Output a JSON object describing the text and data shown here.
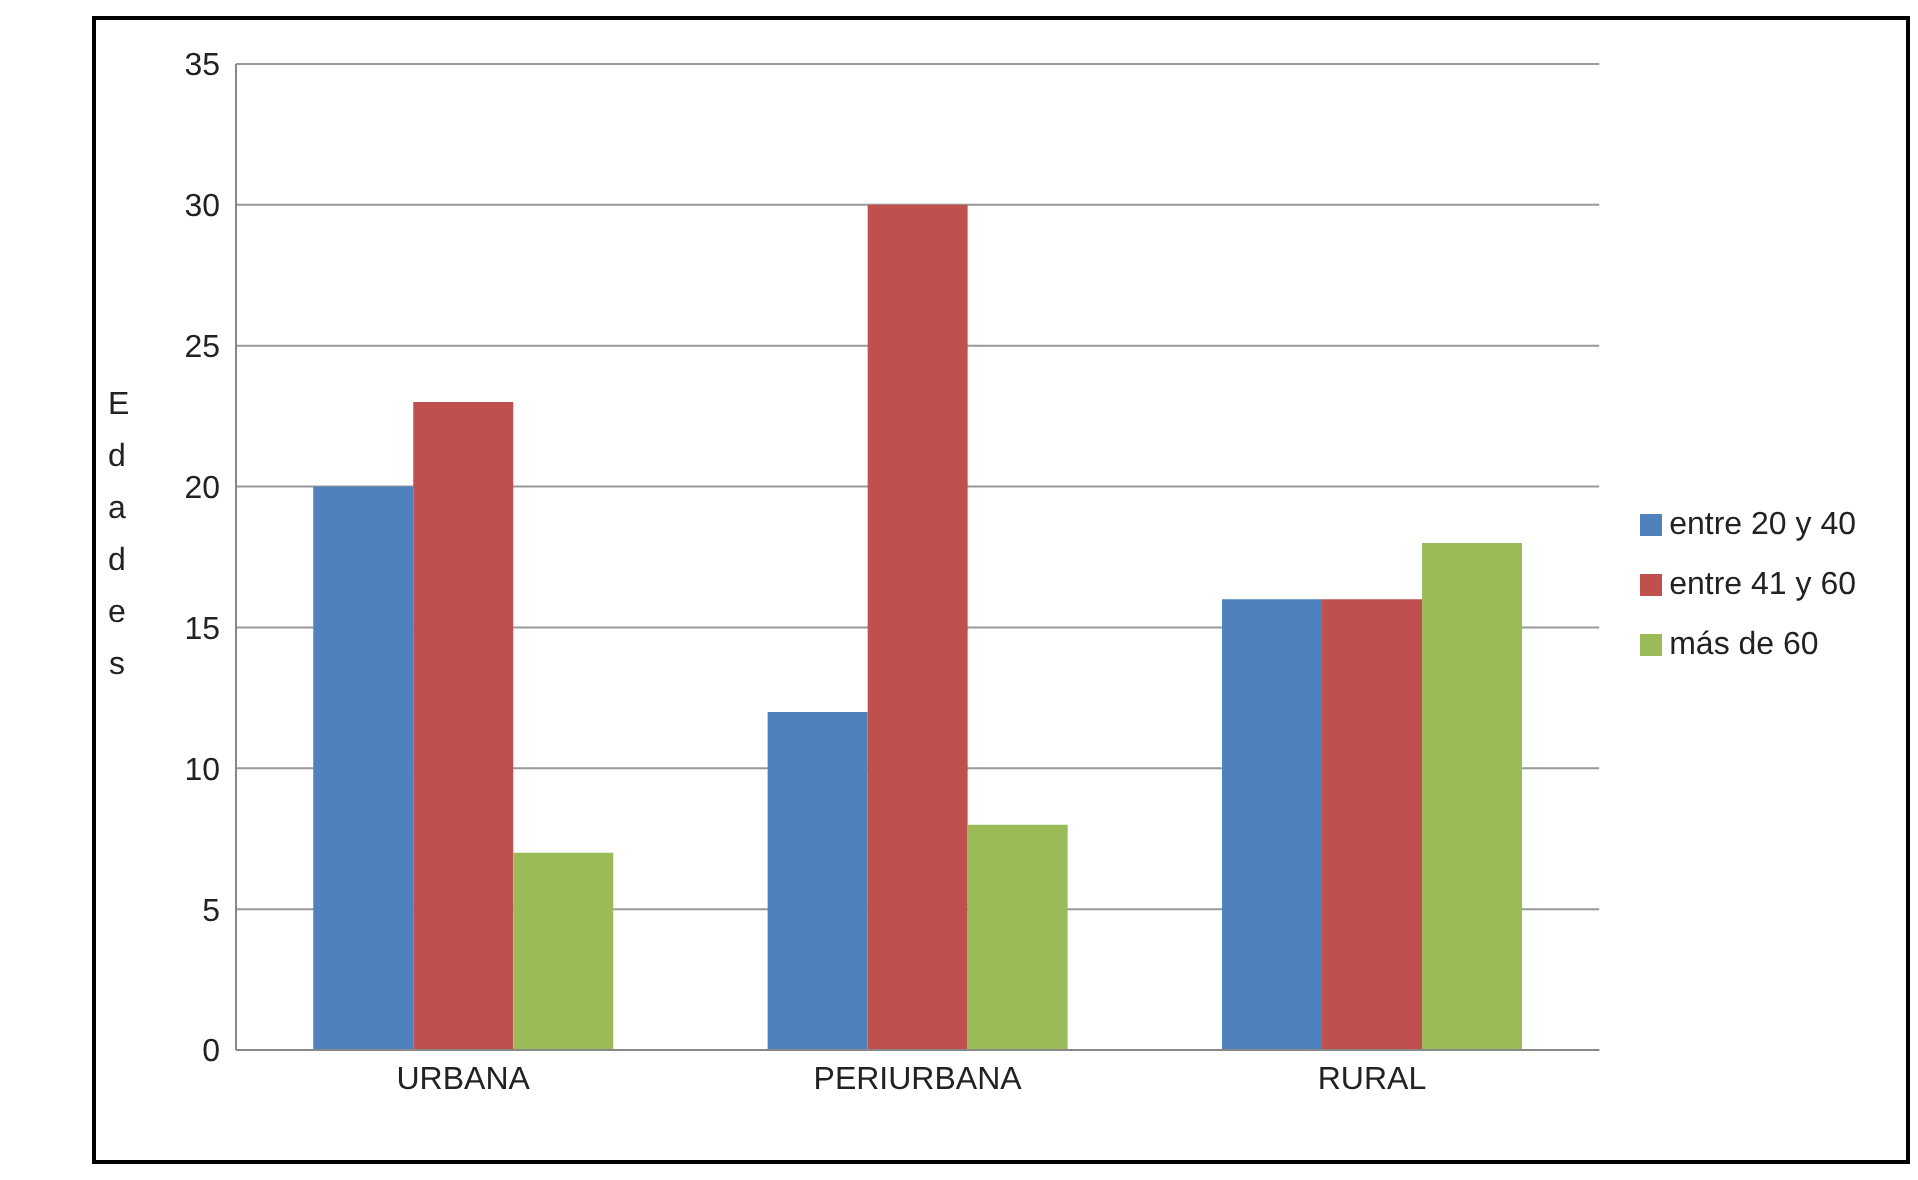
{
  "chart_data": {
    "type": "bar",
    "ylabel": "Edades",
    "categories": [
      "URBANA",
      "PERIURBANA",
      "RURAL"
    ],
    "series": [
      {
        "name": "entre 20 y 40",
        "color": "#4f81bd",
        "values": [
          20,
          12,
          16
        ]
      },
      {
        "name": "entre 41 y 60",
        "color": "#c0504d",
        "values": [
          23,
          30,
          16
        ]
      },
      {
        "name": "más de 60",
        "color": "#9bbb59",
        "values": [
          7,
          8,
          18
        ]
      }
    ],
    "ylim": [
      0,
      35
    ],
    "yticks": [
      0,
      5,
      10,
      15,
      20,
      25,
      30,
      35
    ],
    "grid": "y",
    "legend": "right"
  }
}
